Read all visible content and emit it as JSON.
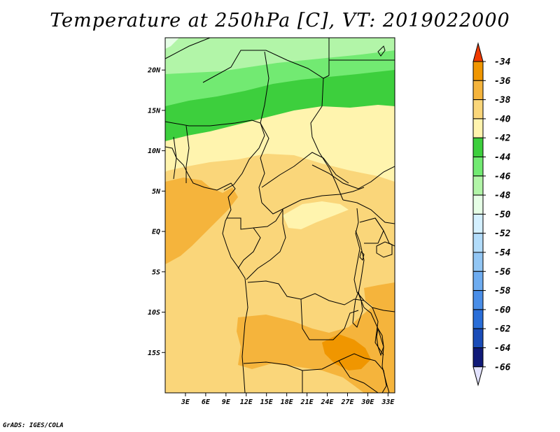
{
  "title": "Temperature at 250hPa [C], VT: 2019022000",
  "credit": "GrADS: IGES/COLA",
  "map": {
    "lon_range": [
      0,
      34
    ],
    "lat_range": [
      -20,
      24
    ],
    "lat_ticks": [
      {
        "label": "20N",
        "lat": 20
      },
      {
        "label": "15N",
        "lat": 15
      },
      {
        "label": "10N",
        "lat": 10
      },
      {
        "label": "5N",
        "lat": 5
      },
      {
        "label": "EQ",
        "lat": 0
      },
      {
        "label": "5S",
        "lat": -5
      },
      {
        "label": "10S",
        "lat": -10
      },
      {
        "label": "15S",
        "lat": -15
      }
    ],
    "lon_ticks": [
      {
        "label": "3E",
        "lon": 3
      },
      {
        "label": "6E",
        "lon": 6
      },
      {
        "label": "9E",
        "lon": 9
      },
      {
        "label": "12E",
        "lon": 12
      },
      {
        "label": "15E",
        "lon": 15
      },
      {
        "label": "18E",
        "lon": 18
      },
      {
        "label": "21E",
        "lon": 21
      },
      {
        "label": "24E",
        "lon": 24
      },
      {
        "label": "27E",
        "lon": 27
      },
      {
        "label": "30E",
        "lon": 30
      },
      {
        "label": "33E",
        "lon": 33
      }
    ]
  },
  "colorbar": {
    "levels": [
      {
        "label": "-34",
        "color": "#f06000"
      },
      {
        "label": "-36",
        "color": "#f09600"
      },
      {
        "label": "-38",
        "color": "#f5b43c"
      },
      {
        "label": "-40",
        "color": "#fad67a"
      },
      {
        "label": "-42",
        "color": "#fff4ae"
      },
      {
        "label": "-44",
        "color": "#3dcf3d"
      },
      {
        "label": "-46",
        "color": "#72ea72"
      },
      {
        "label": "-48",
        "color": "#b2f5a8"
      },
      {
        "label": "-50",
        "color": "#e6fee6"
      },
      {
        "label": "-52",
        "color": "#d4f0ff"
      },
      {
        "label": "-54",
        "color": "#b2dcfa"
      },
      {
        "label": "-56",
        "color": "#92c6f4"
      },
      {
        "label": "-58",
        "color": "#6eacf0"
      },
      {
        "label": "-60",
        "color": "#4a8ee8"
      },
      {
        "label": "-62",
        "color": "#2a6ed8"
      },
      {
        "label": "-64",
        "color": "#1a4cb8"
      },
      {
        "label": "-66",
        "color": "#101a78"
      }
    ],
    "top_arrow_color": "#f03a00",
    "bottom_arrow_color": "#e2e2ff"
  },
  "fields": {
    "c36": "#f09600",
    "c38": "#f5b43c",
    "c40": "#fad67a",
    "c42": "#fff4ae",
    "c44": "#3dcf3d",
    "c46": "#72ea72",
    "c48": "#b2f5a8",
    "c50": "#e6fee6"
  }
}
